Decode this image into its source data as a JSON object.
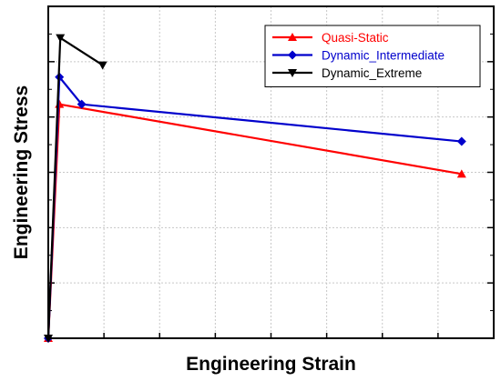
{
  "chart_data": {
    "type": "line",
    "title": "",
    "xlabel": "Engineering Strain",
    "ylabel": "Engineering Stress",
    "xlim": [
      0,
      1.0
    ],
    "ylim": [
      0,
      1.0
    ],
    "tick_labels_shown": false,
    "grid": true,
    "legend_position": "top-right",
    "series": [
      {
        "name": "Quasi-Static",
        "color": "#ff0000",
        "marker": "triangle-up",
        "x": [
          0.0,
          0.025,
          0.928
        ],
        "y": [
          0.0,
          0.705,
          0.495
        ]
      },
      {
        "name": "Dynamic_Intermediate",
        "color": "#0000cc",
        "marker": "diamond",
        "x": [
          0.0,
          0.025,
          0.075,
          0.928
        ],
        "y": [
          0.0,
          0.787,
          0.705,
          0.593
        ]
      },
      {
        "name": "Dynamic_Extreme",
        "color": "#000000",
        "marker": "triangle-down",
        "x": [
          0.0,
          0.027,
          0.122
        ],
        "y": [
          0.0,
          0.905,
          0.823
        ]
      }
    ]
  }
}
